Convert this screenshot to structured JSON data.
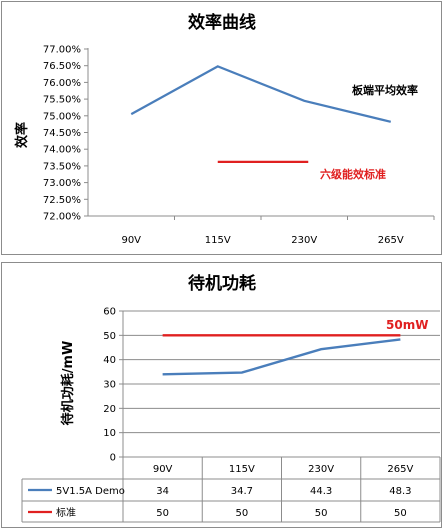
{
  "colors": {
    "blue": "#4a7ebb",
    "red": "#e02020",
    "grid": "#8c8c8c",
    "axis": "#8c8c8c"
  },
  "chart_data": [
    {
      "type": "line",
      "title": "效率曲线",
      "ylabel": "效率",
      "categories": [
        "90V",
        "115V",
        "230V",
        "265V"
      ],
      "ylim": [
        72.0,
        77.0
      ],
      "yticks": [
        "77.00%",
        "76.50%",
        "76.00%",
        "75.50%",
        "75.00%",
        "74.50%",
        "74.00%",
        "73.50%",
        "73.00%",
        "72.50%",
        "72.00%"
      ],
      "series": [
        {
          "values": [
            75.05,
            76.48,
            75.45,
            74.82
          ],
          "color": "#4a7ebb"
        }
      ],
      "reference": {
        "label": "六级能效标准",
        "value": 73.62,
        "color": "#e02020"
      },
      "annotation": "板端平均效率",
      "grid": false
    },
    {
      "type": "line",
      "title": "待机功耗",
      "ylabel": "待机功耗/mW",
      "categories": [
        "90V",
        "115V",
        "230V",
        "265V"
      ],
      "ylim": [
        0,
        60
      ],
      "yticks": [
        "60",
        "50",
        "40",
        "30",
        "20",
        "10",
        "0"
      ],
      "series": [
        {
          "name": "5V1.5A Demo",
          "values": [
            34,
            34.7,
            44.3,
            48.3
          ],
          "labels": [
            "34",
            "34.7",
            "44.3",
            "48.3"
          ],
          "color": "#4a7ebb"
        },
        {
          "name": "标准",
          "values": [
            50,
            50,
            50,
            50
          ],
          "labels": [
            "50",
            "50",
            "50",
            "50"
          ],
          "color": "#e02020"
        }
      ],
      "annotation": "50mW",
      "grid": true,
      "data_table": true
    }
  ]
}
